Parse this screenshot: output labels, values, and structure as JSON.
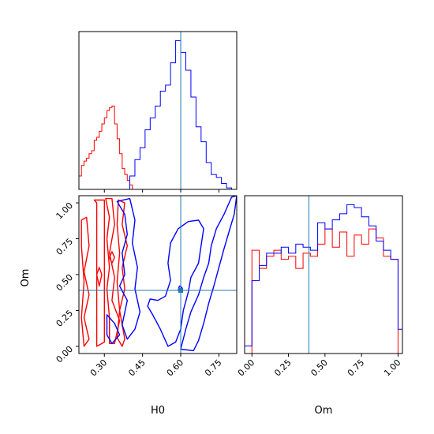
{
  "chart_data": {
    "type": "corner",
    "parameters": [
      "H0",
      "Om"
    ],
    "truth": {
      "H0": 0.6,
      "Om": 0.39
    },
    "colors": {
      "red": "#ff0000",
      "blue": "#0000ff",
      "truth": "#1f77b4"
    },
    "panels": [
      {
        "id": "hist_H0",
        "type": "histogram-step",
        "xlim": [
          0.2,
          0.82
        ],
        "xticks": [
          0.3,
          0.45,
          0.6,
          0.75
        ],
        "series": [
          {
            "color": "red",
            "edges": [
              0.2,
              0.21,
              0.22,
              0.23,
              0.24,
              0.25,
              0.26,
              0.27,
              0.28,
              0.29,
              0.3,
              0.31,
              0.32,
              0.33,
              0.34,
              0.35,
              0.36,
              0.37,
              0.38,
              0.39,
              0.4,
              0.41
            ],
            "counts": [
              0.09,
              0.16,
              0.19,
              0.21,
              0.24,
              0.26,
              0.33,
              0.35,
              0.39,
              0.44,
              0.48,
              0.53,
              0.55,
              0.56,
              0.44,
              0.34,
              0.24,
              0.14,
              0.1,
              0.06,
              0.03
            ]
          },
          {
            "color": "blue",
            "edges": [
              0.4,
              0.42,
              0.44,
              0.46,
              0.48,
              0.5,
              0.52,
              0.54,
              0.56,
              0.58,
              0.6,
              0.62,
              0.64,
              0.66,
              0.68,
              0.7,
              0.72,
              0.74,
              0.76,
              0.78,
              0.8
            ],
            "counts": [
              0.09,
              0.2,
              0.28,
              0.4,
              0.48,
              0.56,
              0.66,
              0.7,
              0.85,
              1.0,
              0.92,
              0.8,
              0.62,
              0.42,
              0.32,
              0.18,
              0.1,
              0.08,
              0.04,
              0.01
            ]
          }
        ]
      },
      {
        "id": "contour_H0_Om",
        "type": "contour",
        "xlim": [
          0.2,
          0.82
        ],
        "ylim": [
          -0.05,
          1.05
        ],
        "xticks": [
          0.3,
          0.45,
          0.6,
          0.75
        ],
        "yticks": [
          0.0,
          0.25,
          0.5,
          0.75,
          1.0
        ],
        "xlabel": "H0",
        "ylabel": "Om",
        "series": [
          {
            "color": "red",
            "contours": [
              [
                [
                  0.26,
                  1.02
                ],
                [
                  0.3,
                  1.02
                ],
                [
                  0.3,
                  0.9
                ],
                [
                  0.3,
                  0.6
                ],
                [
                  0.3,
                  0.3
                ],
                [
                  0.3,
                  0.03
                ],
                [
                  0.27,
                  0.0
                ],
                [
                  0.27,
                  0.3
                ],
                [
                  0.27,
                  0.7
                ],
                [
                  0.27,
                  1.0
                ]
              ],
              [
                [
                  0.305,
                  1.03
                ],
                [
                  0.33,
                  1.03
                ],
                [
                  0.34,
                  0.85
                ],
                [
                  0.32,
                  0.65
                ],
                [
                  0.34,
                  0.48
                ],
                [
                  0.33,
                  0.32
                ],
                [
                  0.36,
                  0.18
                ],
                [
                  0.34,
                  0.02
                ],
                [
                  0.32,
                  0.02
                ],
                [
                  0.32,
                  0.2
                ],
                [
                  0.31,
                  0.4
                ],
                [
                  0.32,
                  0.55
                ],
                [
                  0.31,
                  0.75
                ],
                [
                  0.32,
                  0.9
                ]
              ],
              [
                [
                  0.355,
                  1.02
                ],
                [
                  0.38,
                  1.0
                ],
                [
                  0.37,
                  0.85
                ],
                [
                  0.39,
                  0.7
                ],
                [
                  0.37,
                  0.55
                ],
                [
                  0.38,
                  0.4
                ],
                [
                  0.36,
                  0.25
                ],
                [
                  0.38,
                  0.05
                ],
                [
                  0.37,
                  0.0
                ],
                [
                  0.35,
                  0.06
                ],
                [
                  0.36,
                  0.25
                ],
                [
                  0.35,
                  0.45
                ],
                [
                  0.36,
                  0.65
                ],
                [
                  0.35,
                  0.85
                ]
              ],
              [
                [
                  0.21,
                  0.88
                ],
                [
                  0.23,
                  0.9
                ],
                [
                  0.24,
                  0.7
                ],
                [
                  0.22,
                  0.52
                ],
                [
                  0.24,
                  0.36
                ],
                [
                  0.22,
                  0.2
                ],
                [
                  0.24,
                  0.05
                ],
                [
                  0.22,
                  0.0
                ],
                [
                  0.21,
                  0.2
                ],
                [
                  0.22,
                  0.45
                ],
                [
                  0.21,
                  0.7
                ]
              ],
              [
                [
                  0.28,
                  0.55
                ],
                [
                  0.29,
                  0.5
                ],
                [
                  0.28,
                  0.42
                ],
                [
                  0.27,
                  0.5
                ]
              ],
              [
                [
                  0.33,
                  0.66
                ],
                [
                  0.34,
                  0.62
                ],
                [
                  0.33,
                  0.58
                ],
                [
                  0.32,
                  0.62
                ]
              ]
            ]
          },
          {
            "color": "blue",
            "contours": [
              [
                [
                  0.35,
                  1.01
                ],
                [
                  0.4,
                  1.03
                ],
                [
                  0.42,
                  0.88
                ],
                [
                  0.41,
                  0.72
                ],
                [
                  0.43,
                  0.55
                ],
                [
                  0.42,
                  0.4
                ],
                [
                  0.44,
                  0.24
                ],
                [
                  0.42,
                  0.12
                ],
                [
                  0.39,
                  0.05
                ],
                [
                  0.37,
                  0.15
                ],
                [
                  0.39,
                  0.32
                ],
                [
                  0.36,
                  0.42
                ],
                [
                  0.38,
                  0.5
                ],
                [
                  0.37,
                  0.65
                ],
                [
                  0.39,
                  0.78
                ],
                [
                  0.38,
                  0.92
                ]
              ],
              [
                [
                  0.31,
                  0.22
                ],
                [
                  0.34,
                  0.16
                ],
                [
                  0.36,
                  0.08
                ],
                [
                  0.33,
                  0.02
                ],
                [
                  0.31,
                  0.08
                ]
              ],
              [
                [
                  0.55,
                  0.0
                ],
                [
                  0.54,
                  0.04
                ],
                [
                  0.52,
                  0.12
                ],
                [
                  0.49,
                  0.22
                ],
                [
                  0.47,
                  0.28
                ],
                [
                  0.48,
                  0.33
                ],
                [
                  0.51,
                  0.32
                ],
                [
                  0.54,
                  0.35
                ],
                [
                  0.56,
                  0.46
                ],
                [
                  0.55,
                  0.58
                ],
                [
                  0.56,
                  0.72
                ],
                [
                  0.59,
                  0.82
                ],
                [
                  0.63,
                  0.87
                ],
                [
                  0.67,
                  0.88
                ],
                [
                  0.69,
                  0.82
                ],
                [
                  0.68,
                  0.7
                ],
                [
                  0.67,
                  0.58
                ],
                [
                  0.64,
                  0.48
                ],
                [
                  0.63,
                  0.38
                ],
                [
                  0.61,
                  0.25
                ],
                [
                  0.6,
                  0.12
                ],
                [
                  0.58,
                  0.03
                ]
              ],
              [
                [
                  0.6,
                  -0.02
                ],
                [
                  0.62,
                  0.12
                ],
                [
                  0.64,
                  0.24
                ],
                [
                  0.67,
                  0.36
                ],
                [
                  0.69,
                  0.48
                ],
                [
                  0.71,
                  0.58
                ],
                [
                  0.72,
                  0.7
                ],
                [
                  0.74,
                  0.82
                ],
                [
                  0.77,
                  0.92
                ],
                [
                  0.8,
                  1.04
                ],
                [
                  0.82,
                  1.05
                ],
                [
                  0.81,
                  0.92
                ],
                [
                  0.79,
                  0.8
                ],
                [
                  0.77,
                  0.68
                ],
                [
                  0.75,
                  0.55
                ],
                [
                  0.73,
                  0.42
                ],
                [
                  0.71,
                  0.3
                ],
                [
                  0.69,
                  0.16
                ],
                [
                  0.67,
                  0.04
                ],
                [
                  0.65,
                  -0.03
                ]
              ],
              [
                [
                  0.595,
                  0.42
                ],
                [
                  0.605,
                  0.41
                ],
                [
                  0.6,
                  0.38
                ],
                [
                  0.59,
                  0.39
                ]
              ]
            ]
          }
        ]
      },
      {
        "id": "hist_Om",
        "type": "histogram-step",
        "xlim": [
          -0.05,
          1.03
        ],
        "xticks": [
          0.0,
          0.25,
          0.5,
          0.75,
          1.0
        ],
        "xlabel": "Om",
        "series": [
          {
            "color": "red",
            "edges": [
              0.0,
              0.05,
              0.1,
              0.15,
              0.2,
              0.25,
              0.3,
              0.35,
              0.4,
              0.45,
              0.5,
              0.55,
              0.6,
              0.65,
              0.7,
              0.75,
              0.8,
              0.85,
              0.9,
              0.95,
              1.0
            ],
            "counts": [
              0.68,
              0.56,
              0.64,
              0.68,
              0.62,
              0.64,
              0.56,
              0.66,
              0.64,
              0.72,
              0.82,
              0.7,
              0.8,
              0.64,
              0.78,
              0.72,
              0.82,
              0.76,
              0.64,
              0.62
            ]
          },
          {
            "color": "blue",
            "edges": [
              -0.05,
              0.0,
              0.05,
              0.1,
              0.15,
              0.2,
              0.25,
              0.3,
              0.35,
              0.4,
              0.45,
              0.5,
              0.55,
              0.6,
              0.65,
              0.7,
              0.75,
              0.8,
              0.85,
              0.9,
              0.95,
              1.0,
              1.03
            ],
            "counts": [
              0.05,
              0.48,
              0.58,
              0.66,
              0.66,
              0.7,
              0.66,
              0.72,
              0.7,
              0.68,
              0.86,
              0.82,
              0.88,
              0.92,
              0.98,
              0.96,
              0.9,
              0.84,
              0.74,
              0.68,
              0.62,
              0.16
            ]
          }
        ]
      }
    ]
  }
}
